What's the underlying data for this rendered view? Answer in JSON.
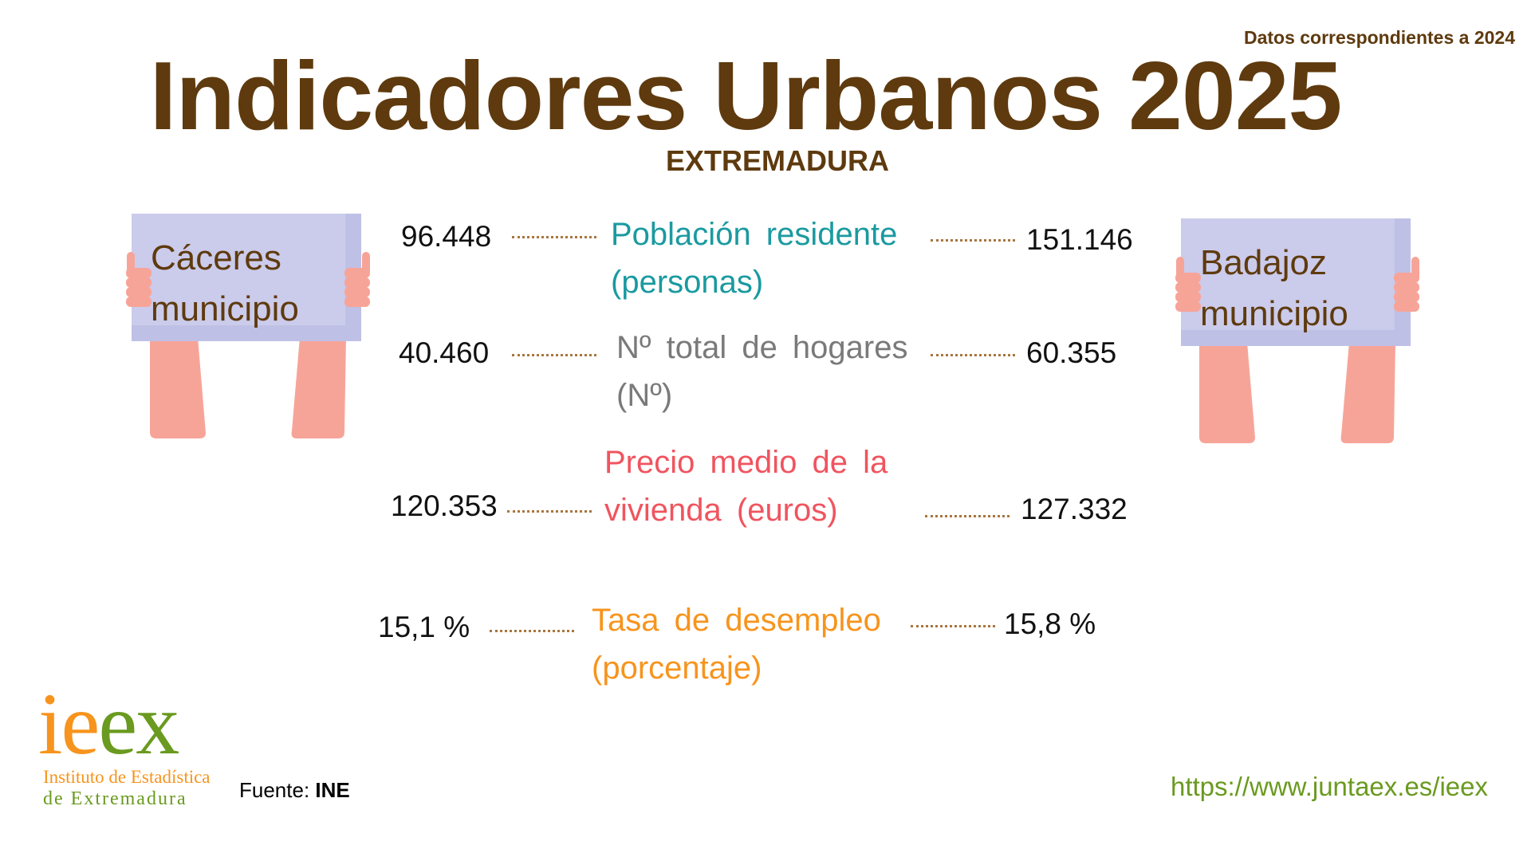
{
  "header": {
    "note": "Datos correspondientes a 2024",
    "title": "Indicadores Urbanos 2025",
    "region": "EXTREMADURA"
  },
  "signs": {
    "left": {
      "line1": "Cáceres",
      "line2": "municipio"
    },
    "right": {
      "line1": "Badajoz",
      "line2": "municipio"
    }
  },
  "indicators": [
    {
      "label": "Población residente (personas)",
      "caceres": "96.448",
      "badajoz": "151.146",
      "color": "#1a9aa0"
    },
    {
      "label": "Nº total de hogares (Nº)",
      "caceres": "40.460",
      "badajoz": "60.355",
      "color": "#7a7a7a"
    },
    {
      "label": "Precio medio de la vivienda (euros)",
      "caceres": "120.353",
      "badajoz": "127.332",
      "color": "#f0545f"
    },
    {
      "label": "Tasa de desempleo (porcentaje)",
      "caceres": "15,1 %",
      "badajoz": "15,8 %",
      "color": "#f7941d"
    }
  ],
  "footer": {
    "logo_text": "ieex",
    "logo_line1": "Instituto de Estadística",
    "logo_line2": "de Extremadura",
    "source_label": "Fuente:",
    "source_value": "INE",
    "url": "https://www.juntaex.es/ieex"
  },
  "colors": {
    "brown": "#5e3a0e",
    "orange": "#f7941d",
    "green": "#6a9a1f"
  }
}
